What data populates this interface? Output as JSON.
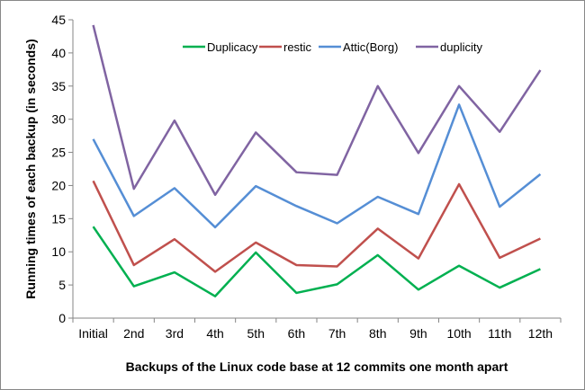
{
  "chart_data": {
    "type": "line",
    "title": "",
    "xlabel": "Backups of the Linux code base at 12 commits one month apart",
    "ylabel": "Running times of each backup  (in seconds)",
    "ylim": [
      0,
      45
    ],
    "yticks": [
      0,
      5,
      10,
      15,
      20,
      25,
      30,
      35,
      40,
      45
    ],
    "grid": false,
    "legend_placement": "top-center",
    "categories": [
      "Initial",
      "2nd",
      "3rd",
      "4th",
      "5th",
      "6th",
      "7th",
      "8th",
      "9th",
      "10th",
      "11th",
      "12th"
    ],
    "series": [
      {
        "name": "Duplicacy",
        "color": "#00b050",
        "values": [
          13.8,
          4.8,
          6.9,
          3.3,
          9.9,
          3.8,
          5.1,
          9.5,
          4.3,
          7.9,
          4.6,
          7.4
        ]
      },
      {
        "name": "restic",
        "color": "#c0504d",
        "values": [
          20.7,
          8.0,
          11.9,
          7.0,
          11.4,
          8.0,
          7.8,
          13.5,
          9.0,
          20.2,
          9.1,
          12.0
        ]
      },
      {
        "name": "Attic(Borg)",
        "color": "#558ed5",
        "values": [
          27.0,
          15.4,
          19.6,
          13.7,
          19.9,
          16.9,
          14.3,
          18.3,
          15.7,
          32.2,
          16.8,
          21.7
        ]
      },
      {
        "name": "duplicity",
        "color": "#8064a2",
        "values": [
          44.2,
          19.5,
          29.8,
          18.6,
          28.0,
          22.0,
          21.6,
          35.0,
          24.9,
          35.0,
          28.1,
          37.4
        ]
      }
    ]
  }
}
